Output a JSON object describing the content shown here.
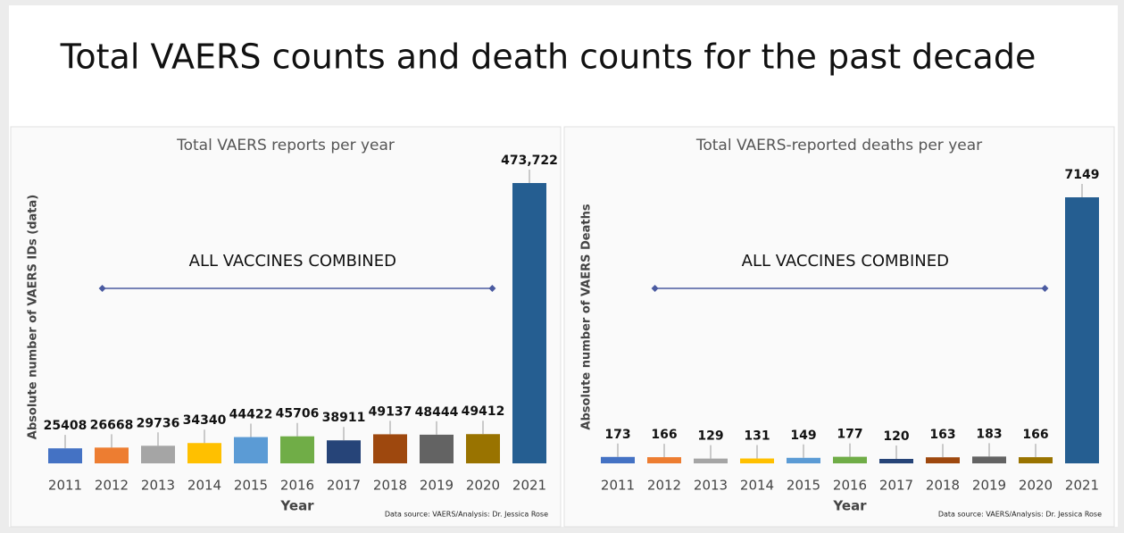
{
  "title": "Total VAERS counts and death counts for the past decade",
  "chart_data": [
    {
      "type": "bar",
      "title": "Total VAERS reports per year",
      "x_label": "Year",
      "y_label": "Absolute number of VAERS IDs (data)",
      "annotation": "ALL VACCINES COMBINED",
      "source": "Data source: VAERS/Analysis: Dr. Jessica Rose",
      "categories": [
        "2011",
        "2012",
        "2013",
        "2014",
        "2015",
        "2016",
        "2017",
        "2018",
        "2019",
        "2020",
        "2021"
      ],
      "values": [
        25408,
        26668,
        29736,
        34340,
        44422,
        45706,
        38911,
        49137,
        48444,
        49412,
        473722
      ],
      "value_labels": [
        "25408",
        "26668",
        "29736",
        "34340",
        "44422",
        "45706",
        "38911",
        "49137",
        "48444",
        "49412",
        "473,722"
      ],
      "colors": [
        "#4472c4",
        "#ed7d31",
        "#a5a5a5",
        "#ffc000",
        "#5b9bd5",
        "#70ad47",
        "#264478",
        "#9e480e",
        "#636363",
        "#997300",
        "#255e91"
      ]
    },
    {
      "type": "bar",
      "title": "Total VAERS-reported deaths per year",
      "x_label": "Year",
      "y_label": "Absolute number of VAERS Deaths",
      "annotation": "ALL VACCINES COMBINED",
      "source": "Data source: VAERS/Analysis: Dr. Jessica Rose",
      "categories": [
        "2011",
        "2012",
        "2013",
        "2014",
        "2015",
        "2016",
        "2017",
        "2018",
        "2019",
        "2020",
        "2021"
      ],
      "values": [
        173,
        166,
        129,
        131,
        149,
        177,
        120,
        163,
        183,
        166,
        7149
      ],
      "colors": [
        "#4472c4",
        "#ed7d31",
        "#a5a5a5",
        "#ffc000",
        "#5b9bd5",
        "#70ad47",
        "#264478",
        "#9e480e",
        "#636363",
        "#997300",
        "#255e91"
      ]
    }
  ]
}
